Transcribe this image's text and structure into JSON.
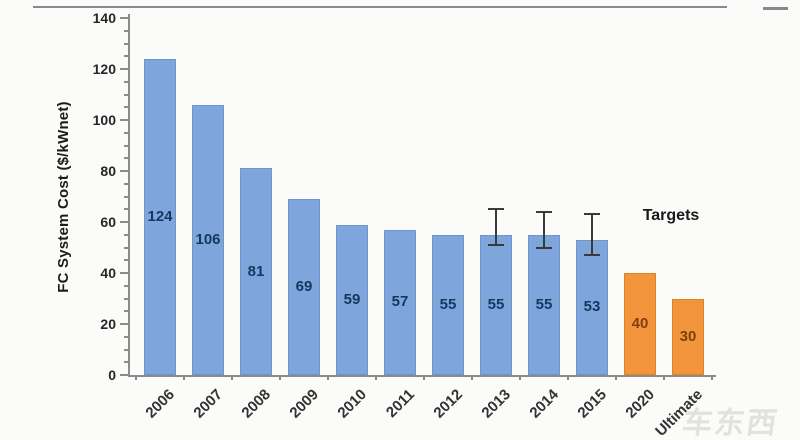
{
  "colors": {
    "background": "#fbfbf9",
    "historical_bar": "#7EA6DC",
    "historical_border": "#6C96CC",
    "target_bar": "#F2953C",
    "target_border": "#E0821F",
    "historical_label_text": "#17375E",
    "target_label_text": "#7F3F0E",
    "axis_line": "#8C8C8C",
    "tick_text": "#262626",
    "error_bar": "#3A3A3A",
    "annotation_text": "#1A1A1A",
    "watermark_text": "#DDDDDB"
  },
  "chart_data": {
    "type": "bar",
    "title": "",
    "xlabel": "",
    "ylabel": "FC System Cost ($/kWnet)",
    "ylim": [
      0,
      140
    ],
    "y_ticks": [
      0,
      20,
      40,
      60,
      80,
      100,
      120,
      140
    ],
    "y_minor_tick_step": 5,
    "grid": false,
    "legend_position": "none",
    "categories": [
      "2006",
      "2007",
      "2008",
      "2009",
      "2010",
      "2011",
      "2012",
      "2013",
      "2014",
      "2015",
      "2020",
      "Ultimate"
    ],
    "values": [
      124,
      106,
      81,
      69,
      59,
      57,
      55,
      55,
      55,
      53,
      40,
      30
    ],
    "bar_groups": [
      "historical",
      "historical",
      "historical",
      "historical",
      "historical",
      "historical",
      "historical",
      "historical",
      "historical",
      "historical",
      "target",
      "target"
    ],
    "data_labels": [
      "124",
      "106",
      "81",
      "69",
      "59",
      "57",
      "55",
      "55",
      "55",
      "53",
      "40",
      "30"
    ],
    "error_low": [
      null,
      null,
      null,
      null,
      null,
      null,
      null,
      51,
      50,
      47,
      null,
      null
    ],
    "error_high": [
      null,
      null,
      null,
      null,
      null,
      null,
      null,
      65,
      64,
      63,
      null,
      null
    ],
    "annotation": "Targets"
  },
  "watermark": {
    "text": "车东西"
  }
}
